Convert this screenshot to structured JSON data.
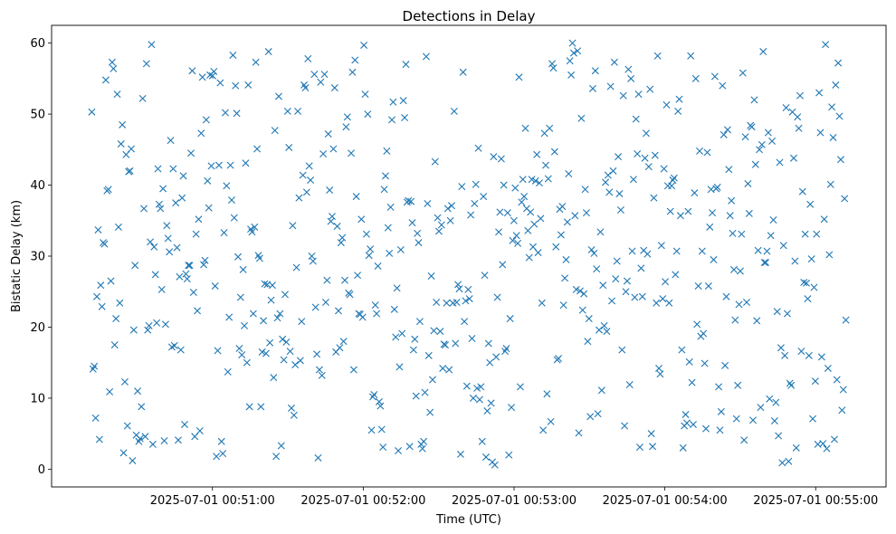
{
  "chart_data": {
    "type": "scatter",
    "title": "Detections in Delay",
    "xlabel": "Time (UTC)",
    "ylabel": "Bistatic Delay (km)",
    "marker": "x",
    "color": "#1f77b4",
    "x_axis": {
      "kind": "time",
      "start": "2025-07-01 00:50:12",
      "end": "2025-07-01 00:55:12",
      "range": [
        "2025-07-01 00:49:56",
        "2025-07-01 00:55:28"
      ],
      "ticks": [
        "2025-07-01 00:51:00",
        "2025-07-01 00:52:00",
        "2025-07-01 00:53:00",
        "2025-07-01 00:54:00",
        "2025-07-01 00:55:00"
      ]
    },
    "y_axis": {
      "range": [
        -2.5,
        62.5
      ],
      "ticks": [
        0,
        10,
        20,
        30,
        40,
        50,
        60
      ]
    },
    "y": [
      50.3,
      14.1,
      14.5,
      7.2,
      24.3,
      33.7,
      4.2,
      25.9,
      22.9,
      31.9,
      31.7,
      54.8,
      39.2,
      39.4,
      10.9,
      26.5,
      57.3,
      56.4,
      17.5,
      21.2,
      52.8,
      34.1,
      23.4,
      45.8,
      48.5,
      2.3,
      12.3,
      44.3,
      6.1,
      41.9,
      42.0,
      45.1,
      1.2,
      19.6,
      28.7,
      4.8,
      11.0,
      3.9,
      4.3,
      8.8,
      52.2,
      36.7,
      4.6,
      57.1,
      19.6,
      20.2,
      32.0,
      59.8,
      3.5,
      31.3,
      27.4,
      20.6,
      42.3,
      37.3,
      36.7,
      25.3,
      39.5,
      4.0,
      20.4,
      34.3,
      32.5,
      30.6,
      46.3,
      17.2,
      42.3,
      17.4,
      37.5,
      31.2,
      4.1,
      27.1,
      16.8,
      38.2,
      41.3,
      6.3,
      27.5,
      26.8,
      28.7,
      28.7,
      44.5,
      56.1,
      24.9,
      4.6,
      33.1,
      22.3,
      35.2,
      5.4,
      47.3,
      55.2,
      28.8,
      29.4,
      49.2,
      40.6,
      36.8,
      55.5,
      42.7,
      55.4,
      56.0,
      25.8,
      1.8,
      16.7,
      42.8,
      54.4,
      3.9,
      2.2,
      33.3,
      50.2,
      39.9,
      13.7,
      21.4,
      42.8,
      37.9,
      58.3,
      35.4,
      54.0,
      50.1,
      29.9,
      17.0,
      24.2,
      16.1,
      28.1,
      20.2,
      43.1,
      15.0,
      54.1,
      8.8,
      33.8,
      33.4,
      21.9,
      34.1,
      57.3,
      45.1,
      30.1,
      29.7,
      8.8,
      16.5,
      20.9,
      26.1,
      16.3,
      26.0,
      58.8,
      17.8,
      23.8,
      25.9,
      12.9,
      47.7,
      1.8,
      21.3,
      52.5,
      21.9,
      3.3,
      18.3,
      15.4,
      24.6,
      17.9,
      50.4,
      45.3,
      16.6,
      8.6,
      34.3,
      7.6,
      14.7,
      28.4,
      50.4,
      38.2,
      15.3,
      20.8,
      41.4,
      54.1,
      53.7,
      39.0,
      57.8,
      42.7,
      40.7,
      30.0,
      29.3,
      55.6,
      22.8,
      16.2,
      1.6,
      14.0,
      54.5,
      13.2,
      44.4,
      55.6,
      23.5,
      26.6,
      47.2,
      39.3,
      34.9,
      35.6,
      45.1,
      53.7,
      16.5,
      34.2,
      22.3,
      17.1,
      31.9,
      32.6,
      18.0,
      26.6,
      48.2,
      49.6,
      24.8,
      24.6,
      44.5,
      55.9,
      14.0,
      57.6,
      38.4,
      27.3,
      21.9,
      21.8,
      35.2,
      21.4,
      59.7,
      52.8,
      33.1,
      50.0,
      30.1,
      31.0,
      5.5,
      10.2,
      10.5,
      23.1,
      21.9,
      28.6,
      9.5,
      8.9,
      5.6,
      3.1,
      39.4,
      41.3,
      44.8,
      34.0,
      30.4,
      36.9,
      49.2,
      51.7,
      22.5,
      18.6,
      25.5,
      2.6,
      14.4,
      30.9,
      19.1,
      51.9,
      49.5,
      57.0,
      37.6,
      37.8,
      3.2,
      37.7,
      34.7,
      16.8,
      18.3,
      10.3,
      33.2,
      31.9,
      20.8,
      3.5,
      2.9,
      3.9,
      10.8,
      58.1,
      37.4,
      16.0,
      8.0,
      27.2,
      12.6,
      19.5,
      43.3,
      23.5,
      35.4,
      33.5,
      19.4,
      34.4,
      14.2,
      17.6,
      17.5,
      23.4,
      36.7,
      14.0,
      35.0,
      37.1,
      23.4,
      50.4,
      17.7,
      23.5,
      26.0,
      25.4,
      2.1,
      39.8,
      55.9,
      20.8,
      23.7,
      11.7,
      25.3,
      24.0,
      35.8,
      18.4,
      10.0,
      37.4,
      40.1,
      11.4,
      45.2,
      9.8,
      11.6,
      3.9,
      38.4,
      27.3,
      1.7,
      8.2,
      17.7,
      15.0,
      9.3,
      1.0,
      44.0,
      0.6,
      15.8,
      24.2,
      33.4,
      36.2,
      43.7,
      28.8,
      40.0,
      16.6,
      17.0,
      36.1,
      2.0,
      21.2,
      8.7,
      32.2,
      35.0,
      39.6,
      32.9,
      31.8,
      55.2,
      11.6,
      37.6,
      40.8,
      38.4,
      48.0,
      36.7,
      33.6,
      29.8,
      36.2,
      40.8,
      31.3,
      34.5,
      40.6,
      44.3,
      30.5,
      40.3,
      35.3,
      23.4,
      5.5,
      47.3,
      42.8,
      10.6,
      40.9,
      48.0,
      6.7,
      57.1,
      56.5,
      44.7,
      31.3,
      15.4,
      15.6,
      36.6,
      33.0,
      37.0,
      23.1,
      26.9,
      29.5,
      34.8,
      41.6,
      57.5,
      55.5,
      60.0,
      58.6,
      35.7,
      25.3,
      58.9,
      5.1,
      25.1,
      49.4,
      22.4,
      24.7,
      39.4,
      36.1,
      18.0,
      21.2,
      7.4,
      30.9,
      53.6,
      30.4,
      56.1,
      28.2,
      7.8,
      19.6,
      33.4,
      11.1,
      25.9,
      20.2,
      40.4,
      19.4,
      41.4,
      39.0,
      53.9,
      23.7,
      42.0,
      57.3,
      26.8,
      29.3,
      44.0,
      38.8,
      36.5,
      16.8,
      52.6,
      6.1,
      25.0,
      26.5,
      56.3,
      11.9,
      55.0,
      30.7,
      40.8,
      24.2,
      49.3,
      44.4,
      52.8,
      3.1,
      28.3,
      24.3,
      30.8,
      43.8,
      47.3,
      30.3,
      42.6,
      53.5,
      5.0,
      3.2,
      38.2,
      44.2,
      23.4,
      58.2,
      14.2,
      13.4,
      31.5,
      24.0,
      42.3,
      26.4,
      51.3,
      39.9,
      23.4,
      36.3,
      39.9,
      40.7,
      41.0,
      27.4,
      30.7,
      50.4,
      52.1,
      35.7,
      16.8,
      3.0,
      6.1,
      7.7,
      6.5,
      36.3,
      15.1,
      58.2,
      12.2,
      6.3,
      38.9,
      55.0,
      20.4,
      25.8,
      44.8,
      18.7,
      30.7,
      19.1,
      14.9,
      5.7,
      44.6,
      25.8,
      34.1,
      39.4,
      36.1,
      29.5,
      55.3,
      39.5,
      39.7,
      11.6,
      5.5,
      8.1,
      54.0,
      47.1,
      14.6,
      24.3,
      47.8,
      42.2,
      35.7,
      37.8,
      33.2,
      28.1,
      21.0,
      7.1,
      11.8,
      23.2,
      27.9,
      33.1,
      55.8,
      4.1,
      46.8,
      23.5,
      40.2,
      36.0,
      48.4,
      48.2,
      6.9,
      52.0,
      42.9,
      20.9,
      30.8,
      45.0,
      8.7,
      45.7,
      58.8,
      29.1,
      29.1,
      30.7,
      47.4,
      9.9,
      32.9,
      46.2,
      35.1,
      6.8,
      9.4,
      22.2,
      4.7,
      43.2,
      17.1,
      0.9,
      31.5,
      16.0,
      50.9,
      21.9,
      1.1,
      12.1,
      11.8,
      50.3,
      43.8,
      29.3,
      3.0,
      49.6,
      48.0,
      52.6,
      16.6,
      39.1,
      26.3,
      33.1,
      26.2,
      24.0,
      16.0,
      37.3,
      29.6,
      7.1,
      25.6,
      12.4,
      33.1,
      3.5,
      53.0,
      47.4,
      15.8,
      3.6,
      35.2,
      59.8,
      2.9,
      14.2,
      30.2,
      40.1,
      51.0,
      46.7,
      4.2,
      54.1,
      12.6,
      57.2,
      49.7,
      43.6,
      8.3,
      11.2,
      38.1,
      21.0
    ]
  }
}
